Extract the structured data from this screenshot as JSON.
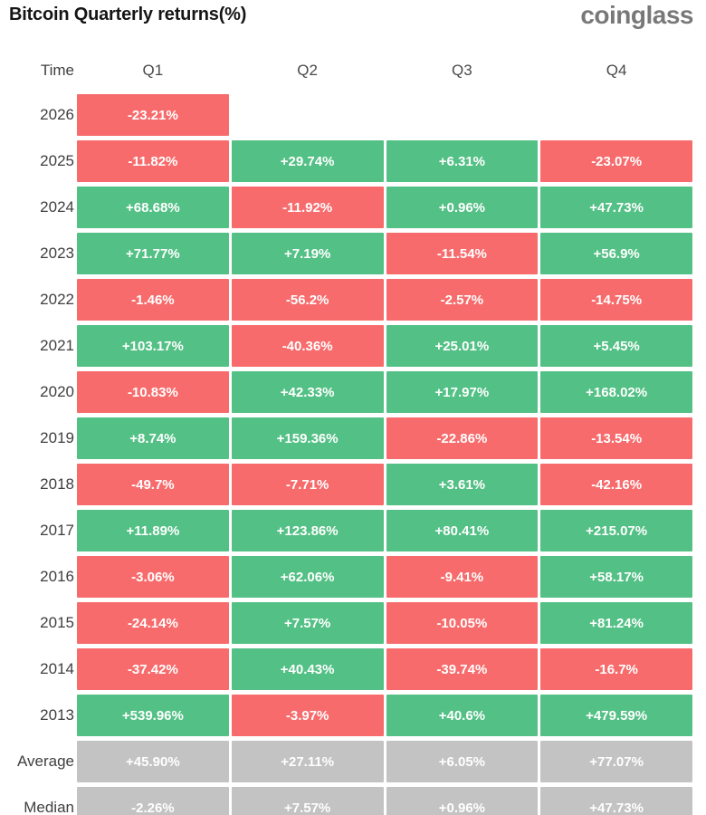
{
  "header": {
    "title": "Bitcoin Quarterly returns(%)",
    "logo": "coinglass"
  },
  "colors": {
    "positive": "#53C085",
    "negative": "#F76B6C",
    "neutral": "#C3C3C3",
    "title_text": "#151515",
    "logo_text": "#787878"
  },
  "table": {
    "columns": [
      "Time",
      "Q1",
      "Q2",
      "Q3",
      "Q4"
    ],
    "rows": [
      {
        "label": "2026",
        "summary": false,
        "values": [
          "-23.21%",
          null,
          null,
          null
        ]
      },
      {
        "label": "2025",
        "summary": false,
        "values": [
          "-11.82%",
          "+29.74%",
          "+6.31%",
          "-23.07%"
        ]
      },
      {
        "label": "2024",
        "summary": false,
        "values": [
          "+68.68%",
          "-11.92%",
          "+0.96%",
          "+47.73%"
        ]
      },
      {
        "label": "2023",
        "summary": false,
        "values": [
          "+71.77%",
          "+7.19%",
          "-11.54%",
          "+56.9%"
        ]
      },
      {
        "label": "2022",
        "summary": false,
        "values": [
          "-1.46%",
          "-56.2%",
          "-2.57%",
          "-14.75%"
        ]
      },
      {
        "label": "2021",
        "summary": false,
        "values": [
          "+103.17%",
          "-40.36%",
          "+25.01%",
          "+5.45%"
        ]
      },
      {
        "label": "2020",
        "summary": false,
        "values": [
          "-10.83%",
          "+42.33%",
          "+17.97%",
          "+168.02%"
        ]
      },
      {
        "label": "2019",
        "summary": false,
        "values": [
          "+8.74%",
          "+159.36%",
          "-22.86%",
          "-13.54%"
        ]
      },
      {
        "label": "2018",
        "summary": false,
        "values": [
          "-49.7%",
          "-7.71%",
          "+3.61%",
          "-42.16%"
        ]
      },
      {
        "label": "2017",
        "summary": false,
        "values": [
          "+11.89%",
          "+123.86%",
          "+80.41%",
          "+215.07%"
        ]
      },
      {
        "label": "2016",
        "summary": false,
        "values": [
          "-3.06%",
          "+62.06%",
          "-9.41%",
          "+58.17%"
        ]
      },
      {
        "label": "2015",
        "summary": false,
        "values": [
          "-24.14%",
          "+7.57%",
          "-10.05%",
          "+81.24%"
        ]
      },
      {
        "label": "2014",
        "summary": false,
        "values": [
          "-37.42%",
          "+40.43%",
          "-39.74%",
          "-16.7%"
        ]
      },
      {
        "label": "2013",
        "summary": false,
        "values": [
          "+539.96%",
          "-3.97%",
          "+40.6%",
          "+479.59%"
        ]
      },
      {
        "label": "Average",
        "summary": true,
        "values": [
          "+45.90%",
          "+27.11%",
          "+6.05%",
          "+77.07%"
        ]
      },
      {
        "label": "Median",
        "summary": true,
        "values": [
          "-2.26%",
          "+7.57%",
          "+0.96%",
          "+47.73%"
        ]
      }
    ]
  },
  "chart_data": {
    "type": "heatmap",
    "title": "Bitcoin Quarterly returns(%)",
    "columns": [
      "Q1",
      "Q2",
      "Q3",
      "Q4"
    ],
    "row_axis_label": "Time",
    "legend": "green = positive quarterly return, red = negative quarterly return, gray = summary statistics",
    "rows": [
      {
        "label": "2026",
        "values": [
          -23.21,
          null,
          null,
          null
        ]
      },
      {
        "label": "2025",
        "values": [
          -11.82,
          29.74,
          6.31,
          -23.07
        ]
      },
      {
        "label": "2024",
        "values": [
          68.68,
          -11.92,
          0.96,
          47.73
        ]
      },
      {
        "label": "2023",
        "values": [
          71.77,
          7.19,
          -11.54,
          56.9
        ]
      },
      {
        "label": "2022",
        "values": [
          -1.46,
          -56.2,
          -2.57,
          -14.75
        ]
      },
      {
        "label": "2021",
        "values": [
          103.17,
          -40.36,
          25.01,
          5.45
        ]
      },
      {
        "label": "2020",
        "values": [
          -10.83,
          42.33,
          17.97,
          168.02
        ]
      },
      {
        "label": "2019",
        "values": [
          8.74,
          159.36,
          -22.86,
          -13.54
        ]
      },
      {
        "label": "2018",
        "values": [
          -49.7,
          -7.71,
          3.61,
          -42.16
        ]
      },
      {
        "label": "2017",
        "values": [
          11.89,
          123.86,
          80.41,
          215.07
        ]
      },
      {
        "label": "2016",
        "values": [
          -3.06,
          62.06,
          -9.41,
          58.17
        ]
      },
      {
        "label": "2015",
        "values": [
          -24.14,
          7.57,
          -10.05,
          81.24
        ]
      },
      {
        "label": "2014",
        "values": [
          -37.42,
          40.43,
          -39.74,
          -16.7
        ]
      },
      {
        "label": "2013",
        "values": [
          539.96,
          -3.97,
          40.6,
          479.59
        ]
      },
      {
        "label": "Average",
        "values": [
          45.9,
          27.11,
          6.05,
          77.07
        ]
      },
      {
        "label": "Median",
        "values": [
          -2.26,
          7.57,
          0.96,
          47.73
        ]
      }
    ]
  }
}
